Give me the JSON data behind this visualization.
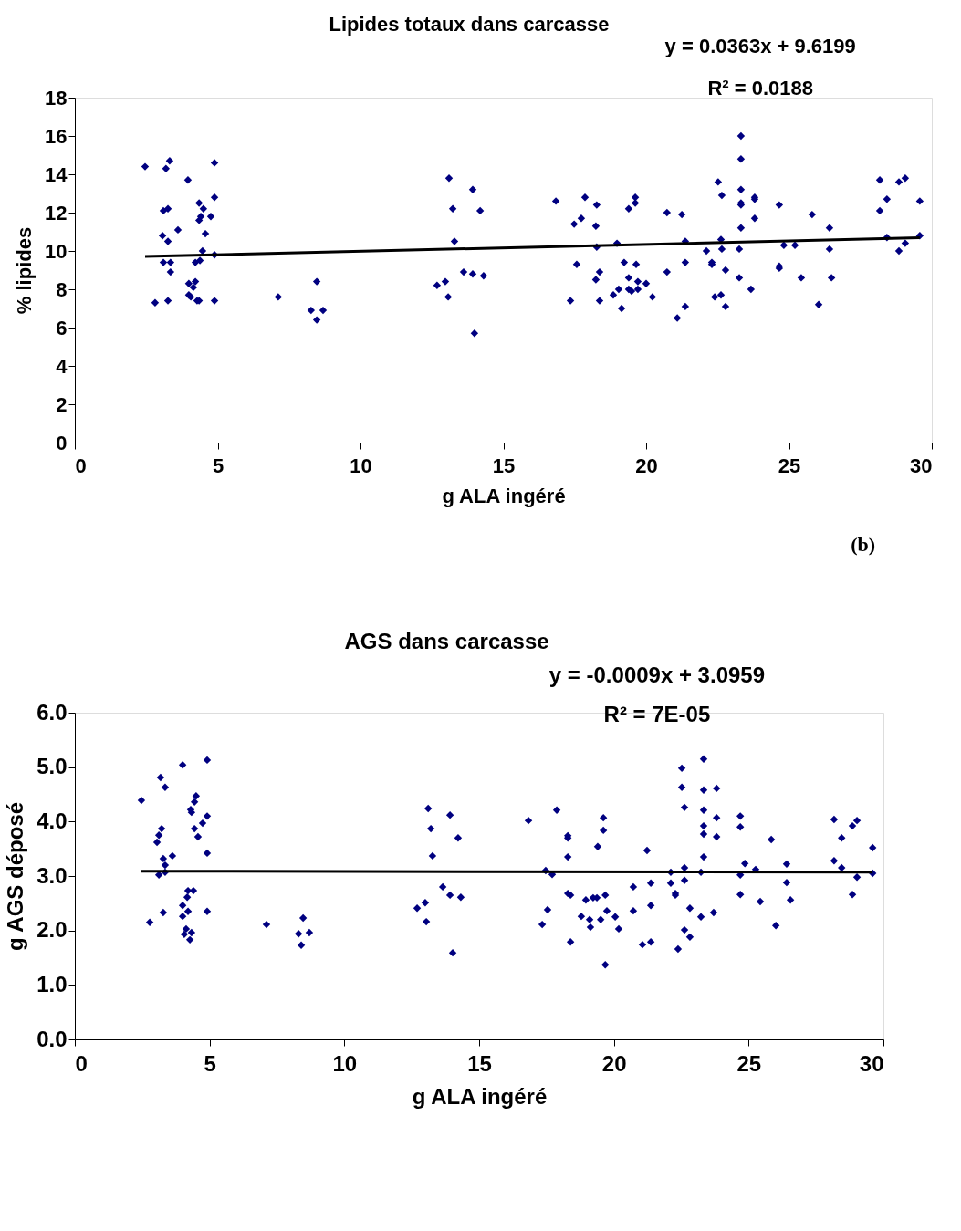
{
  "chart_data": [
    {
      "type": "scatter",
      "title": "Lipides totaux dans carcasse",
      "xlabel": "g ALA ingéré",
      "ylabel": "% lipides",
      "annotations": [
        "y = 0.0363x + 9.6199",
        "R² = 0.0188"
      ],
      "xlim": [
        0,
        30
      ],
      "xticks": [
        0,
        5,
        10,
        15,
        20,
        25,
        30
      ],
      "ylim": [
        0,
        18
      ],
      "yticks": [
        0,
        2,
        4,
        6,
        8,
        10,
        12,
        14,
        16,
        18
      ],
      "grid": false,
      "marker": "diamond",
      "series": [
        {
          "color": "#000080",
          "x": [
            2.46,
            2.81,
            3.07,
            3.1,
            3.26,
            3.19,
            3.32,
            3.26,
            3.1,
            3.35,
            3.35,
            3.26,
            3.61,
            3.96,
            3.99,
            3.99,
            4.06,
            4.15,
            4.22,
            4.28,
            4.35,
            4.22,
            4.38,
            4.35,
            4.41,
            4.35,
            4.5,
            4.47,
            4.57,
            4.76,
            4.89,
            4.89,
            4.89,
            4.89,
            7.12,
            8.27,
            8.47,
            8.47,
            8.69,
            12.68,
            12.97,
            13.07,
            13.1,
            13.23,
            13.29,
            13.61,
            13.93,
            13.93,
            13.99,
            14.19,
            14.31,
            16.84,
            17.35,
            17.48,
            17.57,
            17.73,
            17.86,
            18.24,
            18.27,
            18.27,
            18.37,
            18.24,
            18.37,
            18.85,
            18.98,
            19.04,
            19.14,
            19.23,
            19.39,
            19.39,
            19.39,
            19.49,
            19.62,
            19.62,
            19.65,
            19.71,
            19.71,
            20.0,
            20.22,
            20.73,
            20.73,
            21.09,
            21.25,
            21.37,
            21.37,
            21.37,
            22.11,
            22.3,
            22.3,
            22.4,
            22.62,
            22.52,
            22.65,
            22.62,
            22.65,
            22.78,
            22.78,
            23.26,
            23.26,
            23.32,
            23.32,
            23.32,
            23.32,
            23.32,
            23.32,
            23.67,
            23.8,
            23.8,
            23.8,
            24.66,
            24.66,
            24.66,
            24.82,
            25.21,
            25.43,
            25.81,
            26.04,
            26.42,
            26.42,
            26.49,
            28.18,
            28.18,
            28.43,
            28.43,
            28.85,
            29.07,
            28.85,
            29.07,
            29.58,
            29.58
          ],
          "values": [
            14.4,
            7.3,
            10.8,
            12.1,
            12.2,
            14.3,
            14.7,
            10.5,
            9.4,
            9.4,
            8.9,
            7.4,
            11.1,
            13.7,
            8.3,
            7.7,
            7.6,
            8.1,
            8.4,
            7.4,
            7.4,
            9.4,
            9.5,
            11.6,
            11.8,
            12.5,
            12.2,
            10.0,
            10.9,
            11.8,
            14.6,
            12.8,
            9.8,
            7.4,
            7.6,
            6.9,
            8.4,
            6.4,
            6.9,
            8.2,
            8.4,
            7.6,
            13.8,
            12.2,
            10.5,
            8.9,
            13.2,
            8.8,
            5.7,
            12.1,
            8.7,
            12.6,
            7.4,
            11.4,
            9.3,
            11.7,
            12.8,
            11.3,
            12.4,
            10.2,
            8.9,
            8.5,
            7.4,
            7.7,
            10.4,
            8.0,
            7.0,
            9.4,
            12.2,
            8.6,
            8.0,
            7.9,
            12.8,
            12.5,
            9.3,
            8.4,
            8.0,
            8.3,
            7.6,
            12.0,
            8.9,
            6.5,
            11.9,
            10.5,
            9.4,
            7.1,
            10.0,
            9.4,
            9.3,
            7.6,
            7.7,
            13.6,
            12.9,
            10.6,
            10.1,
            9.0,
            7.1,
            10.1,
            8.6,
            16.0,
            14.8,
            13.2,
            12.5,
            12.4,
            11.2,
            8.0,
            12.8,
            12.7,
            11.7,
            12.4,
            9.2,
            9.1,
            10.3,
            10.3,
            8.6,
            11.9,
            7.2,
            11.2,
            10.1,
            8.6,
            13.7,
            12.1,
            12.7,
            10.7,
            13.6,
            13.8,
            10.0,
            10.4,
            12.6,
            10.8
          ]
        },
        {
          "type": "line",
          "color": "#000000",
          "marker": "none",
          "x": [
            2.46,
            29.58
          ],
          "values": [
            9.71,
            10.69
          ]
        }
      ]
    },
    {
      "type": "scatter",
      "title": "AGS dans carcasse",
      "xlabel": "g ALA ingéré",
      "ylabel": "g AGS déposé",
      "annotations": [
        "(b)",
        "y = -0.0009x + 3.0959",
        "R² = 7E-05"
      ],
      "xlim": [
        0,
        30
      ],
      "xticks": [
        0,
        5,
        10,
        15,
        20,
        25,
        30
      ],
      "ylim": [
        0,
        6
      ],
      "yticks": [
        {
          "value": 0,
          "label": "0.0"
        },
        {
          "value": 1,
          "label": "1.0"
        },
        {
          "value": 2,
          "label": "2.0"
        },
        {
          "value": 3,
          "label": "3.0"
        },
        {
          "value": 4,
          "label": "4.0"
        },
        {
          "value": 5,
          "label": "5.0"
        },
        {
          "value": 6,
          "label": "6.0"
        }
      ],
      "grid": false,
      "marker": "diamond",
      "series": [
        {
          "color": "#000080",
          "x": [
            2.47,
            2.78,
            3.18,
            3.35,
            3.05,
            3.12,
            3.22,
            3.28,
            3.35,
            3.12,
            3.35,
            3.62,
            3.28,
            4.0,
            4.0,
            4.0,
            4.17,
            4.2,
            4.4,
            4.2,
            4.13,
            4.06,
            4.33,
            4.27,
            4.5,
            4.44,
            4.3,
            4.33,
            4.91,
            4.74,
            4.44,
            4.57,
            4.91,
            4.91,
            4.91,
            7.11,
            8.47,
            8.3,
            8.7,
            8.4,
            12.7,
            13.0,
            13.04,
            13.11,
            13.21,
            13.27,
            13.65,
            13.92,
            13.92,
            14.02,
            14.22,
            14.32,
            16.83,
            17.88,
            17.34,
            17.54,
            17.47,
            17.71,
            18.29,
            18.29,
            18.29,
            18.29,
            18.39,
            18.39,
            18.79,
            18.96,
            19.1,
            19.13,
            19.23,
            19.4,
            19.37,
            19.51,
            19.61,
            19.61,
            19.68,
            19.74,
            19.68,
            20.05,
            20.18,
            20.72,
            20.72,
            21.06,
            21.37,
            21.23,
            21.37,
            21.37,
            22.11,
            22.11,
            22.28,
            22.28,
            22.38,
            22.52,
            22.52,
            22.62,
            22.62,
            22.62,
            22.62,
            22.82,
            22.82,
            23.23,
            23.23,
            23.33,
            23.33,
            23.33,
            23.33,
            23.33,
            23.33,
            23.81,
            23.81,
            23.81,
            23.7,
            24.69,
            24.69,
            24.69,
            24.69,
            24.86,
            25.26,
            25.43,
            25.84,
            26.01,
            26.41,
            26.41,
            26.55,
            28.17,
            28.17,
            28.45,
            28.45,
            28.85,
            29.02,
            29.02,
            28.85,
            29.6,
            29.6
          ],
          "values": [
            4.39,
            2.15,
            4.81,
            4.63,
            3.62,
            3.75,
            3.87,
            3.32,
            3.2,
            3.02,
            3.07,
            3.37,
            2.33,
            5.04,
            2.46,
            2.26,
            2.61,
            2.73,
            2.73,
            2.35,
            2.03,
            1.93,
            1.96,
            1.83,
            4.47,
            4.36,
            4.22,
            4.17,
            4.1,
            3.97,
            3.87,
            3.72,
            5.13,
            3.42,
            2.35,
            2.11,
            2.23,
            1.94,
            1.96,
            1.73,
            2.41,
            2.51,
            2.16,
            4.24,
            3.87,
            3.37,
            2.8,
            4.12,
            2.65,
            1.59,
            3.7,
            2.61,
            4.02,
            4.21,
            2.11,
            2.38,
            3.1,
            3.03,
            3.74,
            3.7,
            3.35,
            2.68,
            2.65,
            1.79,
            2.26,
            2.56,
            2.2,
            2.06,
            2.6,
            3.54,
            2.6,
            2.2,
            4.07,
            3.84,
            2.65,
            2.36,
            1.37,
            2.25,
            2.03,
            2.8,
            2.36,
            1.74,
            1.79,
            3.47,
            2.87,
            2.46,
            3.07,
            2.87,
            2.68,
            2.65,
            1.66,
            4.98,
            4.63,
            4.26,
            3.15,
            2.92,
            2.01,
            2.41,
            1.88,
            3.07,
            2.25,
            5.15,
            4.58,
            4.21,
            3.92,
            3.77,
            3.35,
            4.61,
            4.07,
            3.72,
            2.33,
            4.1,
            3.9,
            3.02,
            2.66,
            3.23,
            3.12,
            2.53,
            3.67,
            2.09,
            3.22,
            2.88,
            2.56,
            4.04,
            3.28,
            3.7,
            3.15,
            3.92,
            4.02,
            2.98,
            2.66,
            3.52,
            3.05
          ]
        },
        {
          "type": "line",
          "color": "#000000",
          "marker": "none",
          "x": [
            2.47,
            29.6
          ],
          "values": [
            3.09,
            3.07
          ]
        }
      ]
    }
  ]
}
